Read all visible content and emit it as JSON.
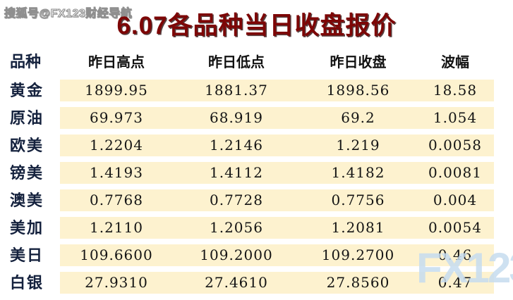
{
  "watermark_top": "搜狐号@FX123财经导航",
  "watermark_bottom": "FX123",
  "title": "6.07各品种当日收盘报价",
  "table": {
    "columns": [
      "品种",
      "昨日高点",
      "昨日低点",
      "昨日收盘",
      "波幅"
    ],
    "rows": [
      {
        "name": "黄金",
        "high": "1899.95",
        "low": "1881.37",
        "close": "1898.56",
        "range": "18.58"
      },
      {
        "name": "原油",
        "high": "69.973",
        "low": "68.919",
        "close": "69.2",
        "range": "1.054"
      },
      {
        "name": "欧美",
        "high": "1.2204",
        "low": "1.2146",
        "close": "1.219",
        "range": "0.0058"
      },
      {
        "name": "镑美",
        "high": "1.4193",
        "low": "1.4112",
        "close": "1.4182",
        "range": "0.0081"
      },
      {
        "name": "澳美",
        "high": "0.7768",
        "low": "0.7728",
        "close": "0.7756",
        "range": "0.004"
      },
      {
        "name": "美加",
        "high": "1.2110",
        "low": "1.2056",
        "close": "1.2081",
        "range": "0.0054"
      },
      {
        "name": "美日",
        "high": "109.6600",
        "low": "109.2000",
        "close": "109.2700",
        "range": "0.46"
      },
      {
        "name": "白银",
        "high": "27.9310",
        "low": "27.4610",
        "close": "27.8560",
        "range": "0.47"
      }
    ]
  },
  "chart_data": {
    "type": "table",
    "title": "6.07各品种当日收盘报价",
    "columns": [
      "品种",
      "昨日高点",
      "昨日低点",
      "昨日收盘",
      "波幅"
    ],
    "rows": [
      [
        "黄金",
        1899.95,
        1881.37,
        1898.56,
        18.58
      ],
      [
        "原油",
        69.973,
        68.919,
        69.2,
        1.054
      ],
      [
        "欧美",
        1.2204,
        1.2146,
        1.219,
        0.0058
      ],
      [
        "镑美",
        1.4193,
        1.4112,
        1.4182,
        0.0081
      ],
      [
        "澳美",
        0.7768,
        0.7728,
        0.7756,
        0.004
      ],
      [
        "美加",
        1.211,
        1.2056,
        1.2081,
        0.0054
      ],
      [
        "美日",
        109.66,
        109.2,
        109.27,
        0.46
      ],
      [
        "白银",
        27.931,
        27.461,
        27.856,
        0.47
      ]
    ]
  },
  "colors": {
    "row_background": "#fdf2cf",
    "title_red": "#7d0606",
    "label_navy": "#14213d",
    "watermark_blue": "#c6dcee"
  }
}
